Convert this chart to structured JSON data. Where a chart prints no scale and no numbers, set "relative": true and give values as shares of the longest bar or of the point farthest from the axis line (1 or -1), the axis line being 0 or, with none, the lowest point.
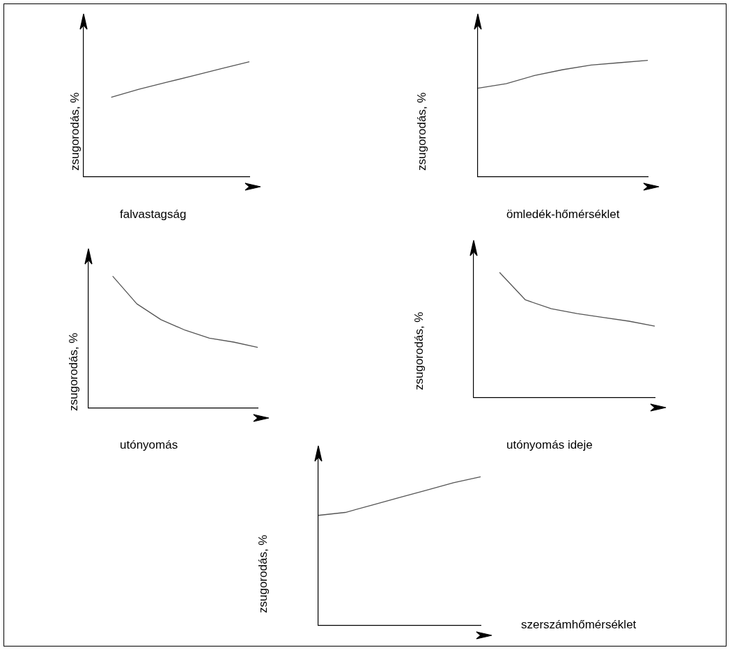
{
  "chart_data": [
    {
      "type": "line",
      "relative": true,
      "xlabel": "falvastagság",
      "ylabel": "zsugorodás, %",
      "categories": [
        null,
        null,
        null,
        null,
        null,
        null,
        null
      ],
      "series": [
        {
          "color": "#555555",
          "values": [
            null,
            0.69,
            0.76,
            0.82,
            0.88,
            0.94,
            1
          ]
        }
      ]
    },
    {
      "type": "line",
      "relative": true,
      "xlabel": "ömledék-hőmérséklet",
      "ylabel": "zsugorodás, %",
      "categories": [
        null,
        null,
        null,
        null,
        null,
        null,
        null
      ],
      "series": [
        {
          "color": "#555555",
          "values": [
            0.76,
            0.8,
            0.87,
            0.92,
            0.96,
            0.98,
            1
          ]
        }
      ]
    },
    {
      "type": "line",
      "relative": true,
      "xlabel": "utónyomás",
      "ylabel": "zsugorodás, %",
      "categories": [
        null,
        null,
        null,
        null,
        null,
        null,
        null,
        null
      ],
      "series": [
        {
          "color": "#555555",
          "values": [
            null,
            1,
            0.79,
            0.67,
            0.59,
            0.53,
            0.5,
            0.46
          ]
        }
      ]
    },
    {
      "type": "line",
      "relative": true,
      "xlabel": "utónyomás ideje",
      "ylabel": "zsugorodás, %",
      "categories": [
        null,
        null,
        null,
        null,
        null,
        null,
        null,
        null
      ],
      "series": [
        {
          "color": "#555555",
          "values": [
            null,
            1,
            0.78,
            0.71,
            0.67,
            0.64,
            0.61,
            0.57
          ]
        }
      ]
    },
    {
      "type": "line",
      "relative": true,
      "xlabel": "szerszámhőmérséklet",
      "ylabel": "zsugorodás, %",
      "categories": [
        null,
        null,
        null,
        null,
        null,
        null,
        null
      ],
      "series": [
        {
          "color": "#555555",
          "values": [
            0.74,
            0.76,
            0.81,
            0.86,
            0.91,
            0.96,
            1
          ]
        }
      ]
    }
  ]
}
